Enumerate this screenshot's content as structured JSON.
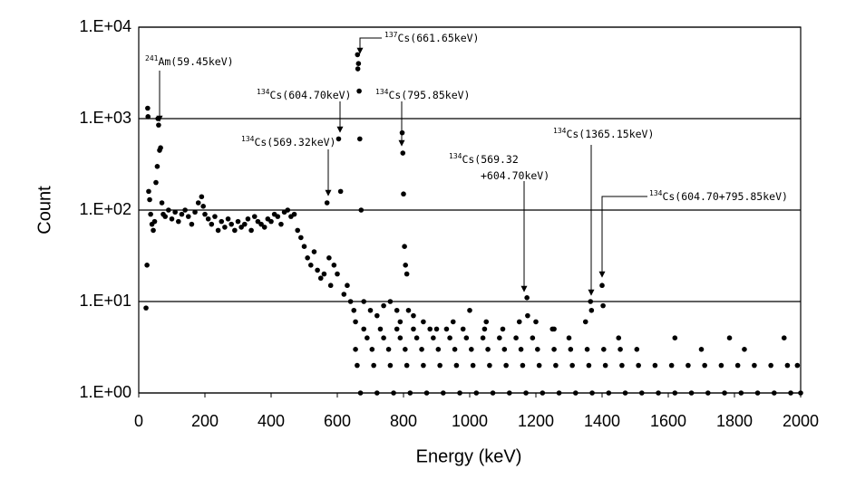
{
  "chart_data": {
    "type": "scatter",
    "xlabel": "Energy (keV)",
    "ylabel": "Count",
    "xlim": [
      0,
      2000
    ],
    "xticks": [
      0,
      200,
      400,
      600,
      800,
      1000,
      1200,
      1400,
      1600,
      1800,
      2000
    ],
    "ylim": [
      1,
      10000
    ],
    "yticks": [
      {
        "value": 1,
        "label": "1.E+00"
      },
      {
        "value": 10,
        "label": "1.E+01"
      },
      {
        "value": 100,
        "label": "1.E+02"
      },
      {
        "value": 1000,
        "label": "1.E+03"
      },
      {
        "value": 10000,
        "label": "1.E+04"
      }
    ],
    "log_y": true,
    "grid": true,
    "series": [
      {
        "color": "#000000",
        "x": [
          22,
          25,
          27,
          28,
          30,
          33,
          36,
          40,
          44,
          48,
          52,
          56,
          58,
          60,
          63,
          66,
          70,
          74,
          80,
          90,
          100,
          110,
          120,
          130,
          140,
          150,
          160,
          170,
          180,
          190,
          195,
          200,
          210,
          220,
          230,
          240,
          250,
          260,
          270,
          280,
          290,
          300,
          310,
          320,
          330,
          340,
          350,
          360,
          370,
          380,
          390,
          400,
          410,
          420,
          430,
          440,
          450,
          460,
          470,
          480,
          490,
          500,
          510,
          520,
          530,
          540,
          550,
          560,
          569,
          575,
          580,
          590,
          600,
          604,
          610,
          620,
          630,
          640,
          650,
          655,
          661,
          662,
          664,
          666,
          668,
          672,
          680,
          700,
          720,
          740,
          760,
          780,
          790,
          796,
          798,
          800,
          803,
          806,
          810,
          815,
          830,
          860,
          900,
          950,
          1000,
          1050,
          1100,
          1150,
          1173,
          1175,
          1200,
          1250,
          1300,
          1350,
          1365,
          1368,
          1400,
          1403,
          1450
        ],
        "values": [
          8.5,
          25,
          1300,
          1050,
          160,
          130,
          90,
          70,
          60,
          75,
          200,
          300,
          1000,
          850,
          450,
          480,
          120,
          90,
          85,
          100,
          80,
          95,
          75,
          90,
          100,
          85,
          70,
          95,
          120,
          140,
          110,
          90,
          80,
          70,
          85,
          60,
          75,
          65,
          80,
          70,
          60,
          75,
          65,
          70,
          80,
          60,
          85,
          75,
          70,
          65,
          80,
          75,
          90,
          85,
          70,
          95,
          100,
          85,
          90,
          60,
          50,
          40,
          30,
          25,
          35,
          22,
          18,
          20,
          120,
          30,
          15,
          25,
          20,
          600,
          160,
          12,
          15,
          10,
          8,
          6,
          5000,
          3500,
          4000,
          2000,
          600,
          100,
          10,
          8,
          7,
          9,
          10,
          8,
          6,
          700,
          420,
          150,
          40,
          25,
          20,
          8,
          7,
          6,
          5,
          6,
          8,
          6,
          5,
          6,
          11,
          7,
          6,
          5,
          4,
          6,
          10,
          8,
          15,
          9,
          4
        ]
      },
      {
        "color": "#000000",
        "x": [
          670,
          720,
          770,
          820,
          870,
          920,
          970,
          1020,
          1070,
          1120,
          1170,
          1220,
          1270,
          1320,
          1370,
          1420,
          1470,
          1520,
          1570,
          1620,
          1670,
          1720,
          1770,
          1820,
          1870,
          1920,
          1970,
          2000
        ],
        "values": [
          1,
          1,
          1,
          1,
          1,
          1,
          1,
          1,
          1,
          1,
          1,
          1,
          1,
          1,
          1,
          1,
          1,
          1,
          1,
          1,
          1,
          1,
          1,
          1,
          1,
          1,
          1,
          1
        ]
      },
      {
        "color": "#000000",
        "x": [
          660,
          710,
          760,
          810,
          860,
          910,
          960,
          1010,
          1060,
          1110,
          1160,
          1210,
          1260,
          1310,
          1360,
          1410,
          1460,
          1510,
          1560,
          1610,
          1660,
          1710,
          1760,
          1810,
          1860,
          1910,
          1960,
          1990
        ],
        "values": [
          2,
          2,
          2,
          2,
          2,
          2,
          2,
          2,
          2,
          2,
          2,
          2,
          2,
          2,
          2,
          2,
          2,
          2,
          2,
          2,
          2,
          2,
          2,
          2,
          2,
          2,
          2,
          2
        ]
      },
      {
        "color": "#000000",
        "x": [
          655,
          705,
          755,
          805,
          855,
          905,
          955,
          1005,
          1055,
          1105,
          1155,
          1205,
          1255,
          1305,
          1355,
          1405,
          1455,
          1505,
          1700,
          1830
        ],
        "values": [
          3,
          3,
          3,
          3,
          3,
          3,
          3,
          3,
          3,
          3,
          3,
          3,
          3,
          3,
          3,
          3,
          3,
          3,
          3,
          3
        ]
      },
      {
        "color": "#000000",
        "x": [
          690,
          740,
          790,
          840,
          890,
          940,
          990,
          1040,
          1090,
          1140,
          1190,
          1620,
          1785,
          1950
        ],
        "values": [
          4,
          4,
          4,
          4,
          4,
          4,
          4,
          4,
          4,
          4,
          4,
          4,
          4,
          4
        ]
      },
      {
        "color": "#000000",
        "x": [
          680,
          730,
          780,
          830,
          880,
          930,
          980,
          1045,
          1255
        ],
        "values": [
          5,
          5,
          5,
          5,
          5,
          5,
          5,
          5,
          5
        ]
      }
    ],
    "annotations": [
      {
        "sup": "241",
        "text": [
          "Am(59.45keV)"
        ]
      },
      {
        "sup": "137",
        "text": [
          "Cs(661.65keV)"
        ]
      },
      {
        "sup": "134",
        "text": [
          "Cs(604.70keV)"
        ]
      },
      {
        "sup": "134",
        "text": [
          "Cs(795.85keV)"
        ]
      },
      {
        "sup": "134",
        "text": [
          "Cs(569.32keV)"
        ]
      },
      {
        "sup": "134",
        "text": [
          "Cs(569.32",
          "+604.70keV)"
        ]
      },
      {
        "sup": "134",
        "text": [
          "Cs(1365.15keV)"
        ]
      },
      {
        "sup": "134",
        "text": [
          "Cs(604.70+795.85keV)"
        ]
      }
    ]
  }
}
